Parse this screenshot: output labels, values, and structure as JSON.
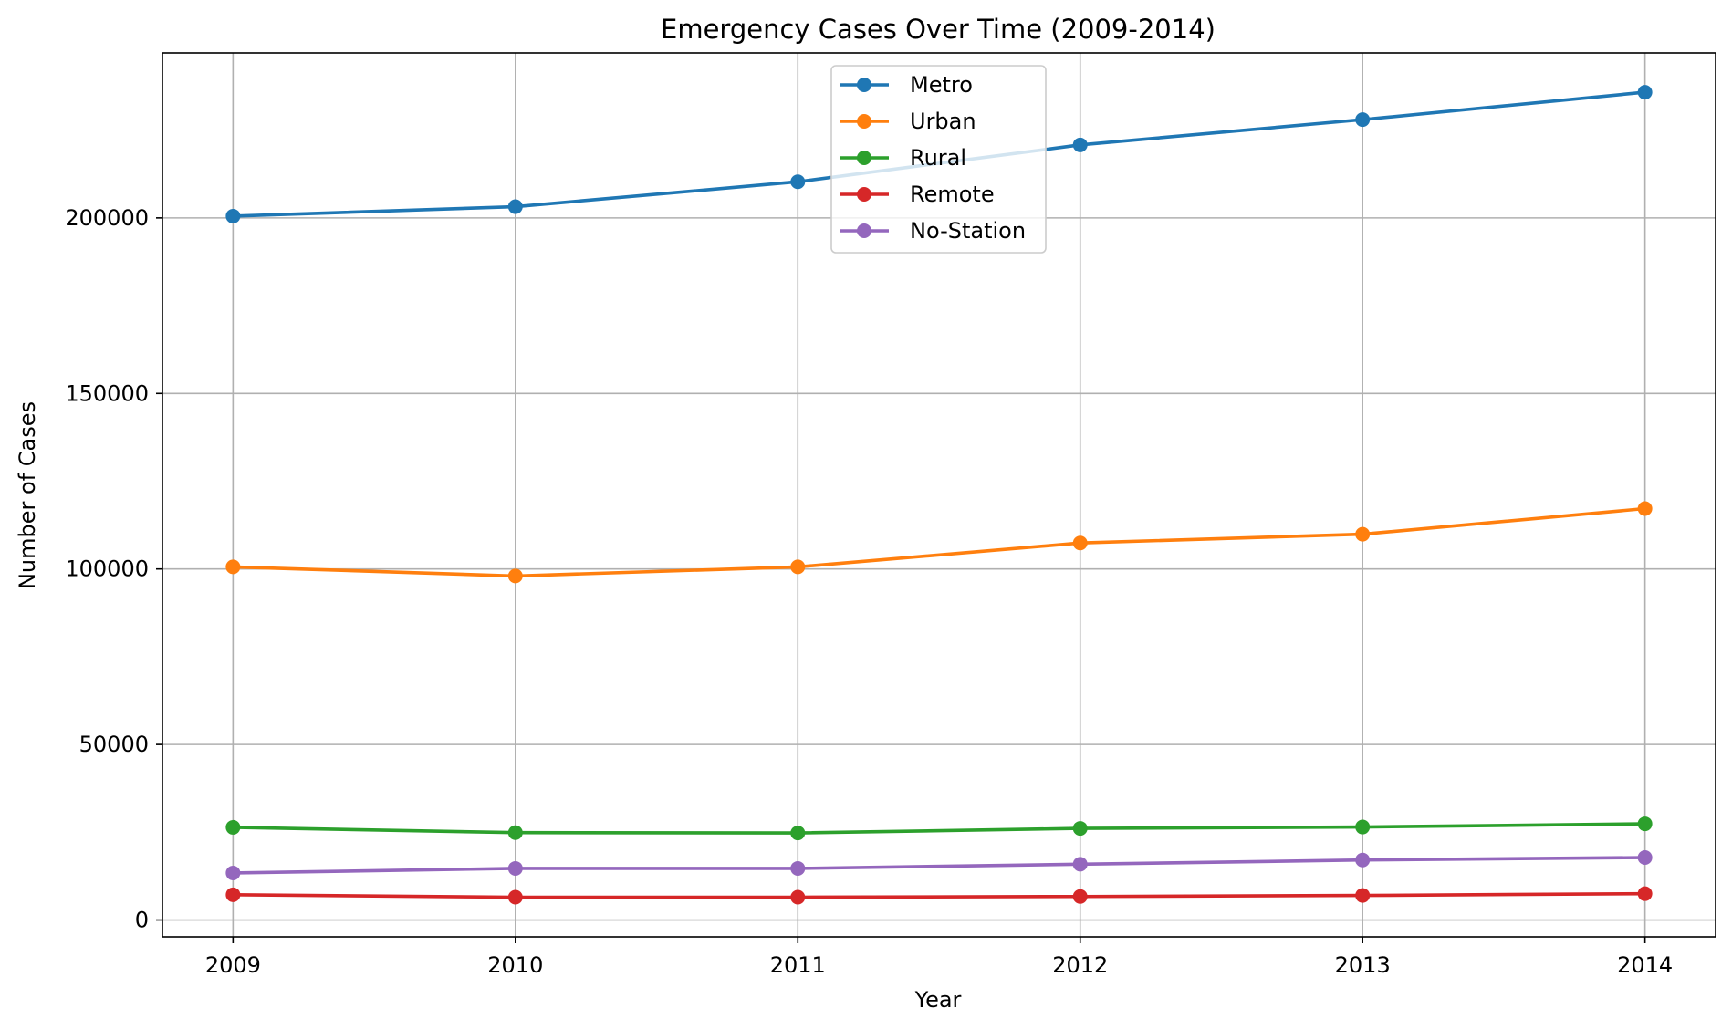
{
  "chart_data": {
    "type": "line",
    "title": "Emergency Cases Over Time (2009-2014)",
    "xlabel": "Year",
    "ylabel": "Number of Cases",
    "x": [
      2009,
      2010,
      2011,
      2012,
      2013,
      2014
    ],
    "xlim": [
      2008.75,
      2014.25
    ],
    "ylim": [
      -4800,
      247000
    ],
    "yticks": [
      0,
      50000,
      100000,
      150000,
      200000
    ],
    "grid": true,
    "legend_position": "top-center",
    "series": [
      {
        "name": "Metro",
        "color": "#1f77b4",
        "values": [
          200500,
          203200,
          210300,
          220800,
          228000,
          235800
        ]
      },
      {
        "name": "Urban",
        "color": "#ff7f0e",
        "values": [
          100600,
          98000,
          100600,
          107400,
          109900,
          117200
        ]
      },
      {
        "name": "Rural",
        "color": "#2ca02c",
        "values": [
          26400,
          24900,
          24800,
          26100,
          26500,
          27400
        ]
      },
      {
        "name": "Remote",
        "color": "#d62728",
        "values": [
          7200,
          6500,
          6500,
          6700,
          7000,
          7500
        ]
      },
      {
        "name": "No-Station",
        "color": "#9467bd",
        "values": [
          13400,
          14700,
          14700,
          15900,
          17100,
          17800
        ]
      }
    ]
  }
}
